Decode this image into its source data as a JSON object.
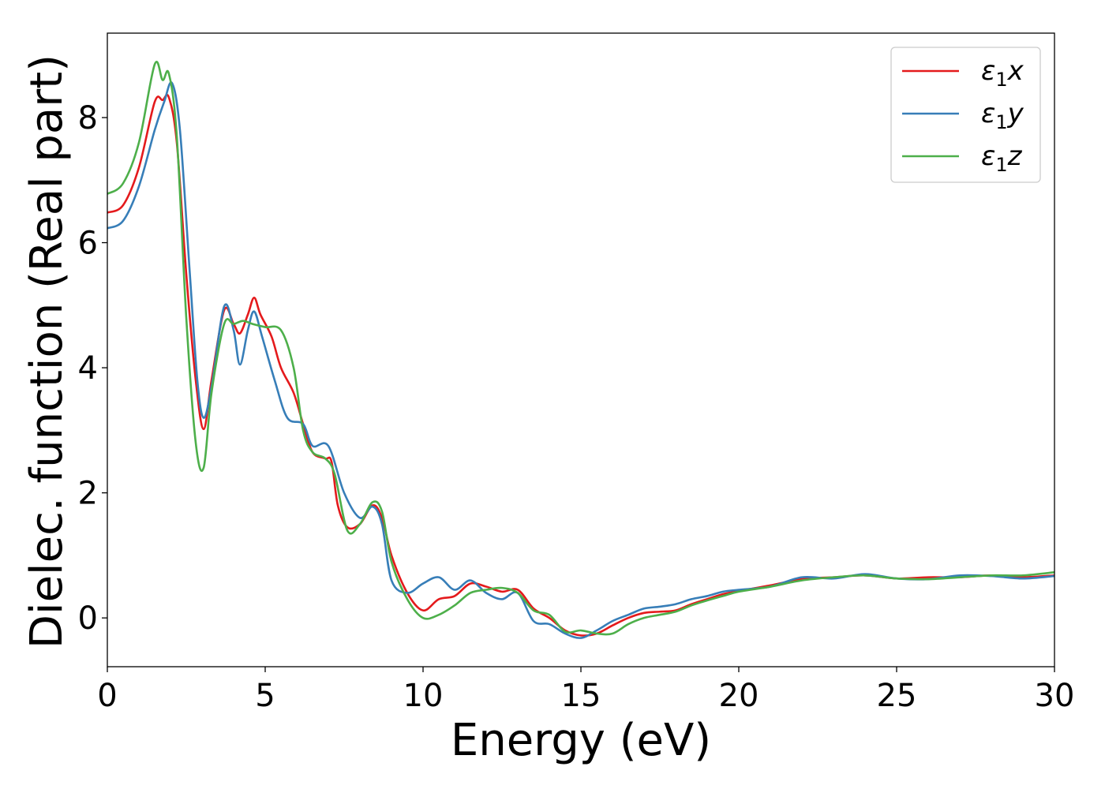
{
  "chart_data": {
    "type": "line",
    "title": "",
    "xlabel": "Energy (eV)",
    "ylabel": "Dielec. function (Real part)",
    "xlim": [
      0,
      30
    ],
    "ylim": [
      -0.78,
      9.35
    ],
    "xticks": [
      0,
      5,
      10,
      15,
      20,
      25,
      30
    ],
    "yticks": [
      0,
      2,
      4,
      6,
      8
    ],
    "grid": false,
    "legend_position": "top-right",
    "series": [
      {
        "name": "ε₁x",
        "name_main": "ε",
        "name_sub": "1",
        "name_suffix": "x",
        "color": "#e41a1c",
        "points": [
          [
            0,
            6.48
          ],
          [
            0.5,
            6.6
          ],
          [
            1,
            7.2
          ],
          [
            1.5,
            8.25
          ],
          [
            1.75,
            8.28
          ],
          [
            1.95,
            8.32
          ],
          [
            2.2,
            7.6
          ],
          [
            2.5,
            5.5
          ],
          [
            2.8,
            3.8
          ],
          [
            3.05,
            3.02
          ],
          [
            3.3,
            3.8
          ],
          [
            3.7,
            4.92
          ],
          [
            4.0,
            4.7
          ],
          [
            4.2,
            4.55
          ],
          [
            4.45,
            4.85
          ],
          [
            4.65,
            5.12
          ],
          [
            4.85,
            4.85
          ],
          [
            5.2,
            4.5
          ],
          [
            5.5,
            4.0
          ],
          [
            5.9,
            3.6
          ],
          [
            6.2,
            3.1
          ],
          [
            6.5,
            2.65
          ],
          [
            6.9,
            2.55
          ],
          [
            7.1,
            2.5
          ],
          [
            7.3,
            1.8
          ],
          [
            7.6,
            1.45
          ],
          [
            8.0,
            1.5
          ],
          [
            8.4,
            1.8
          ],
          [
            8.7,
            1.6
          ],
          [
            9.0,
            1.0
          ],
          [
            9.5,
            0.4
          ],
          [
            10.0,
            0.12
          ],
          [
            10.5,
            0.3
          ],
          [
            11.0,
            0.35
          ],
          [
            11.5,
            0.55
          ],
          [
            12.0,
            0.5
          ],
          [
            12.5,
            0.42
          ],
          [
            13.0,
            0.45
          ],
          [
            13.5,
            0.15
          ],
          [
            14.0,
            0.0
          ],
          [
            14.5,
            -0.2
          ],
          [
            15.0,
            -0.28
          ],
          [
            15.5,
            -0.25
          ],
          [
            16.0,
            -0.12
          ],
          [
            16.5,
            0.0
          ],
          [
            17.0,
            0.08
          ],
          [
            17.5,
            0.1
          ],
          [
            18.0,
            0.12
          ],
          [
            18.5,
            0.22
          ],
          [
            19.0,
            0.3
          ],
          [
            19.5,
            0.38
          ],
          [
            20.0,
            0.43
          ],
          [
            21.0,
            0.52
          ],
          [
            22.0,
            0.62
          ],
          [
            23.0,
            0.65
          ],
          [
            24.0,
            0.68
          ],
          [
            25.0,
            0.63
          ],
          [
            26.0,
            0.65
          ],
          [
            27.0,
            0.65
          ],
          [
            28.0,
            0.68
          ],
          [
            29.0,
            0.65
          ],
          [
            30.0,
            0.68
          ]
        ]
      },
      {
        "name": "ε₁y",
        "name_main": "ε",
        "name_sub": "1",
        "name_suffix": "y",
        "color": "#377eb8",
        "points": [
          [
            0,
            6.23
          ],
          [
            0.5,
            6.35
          ],
          [
            1,
            6.9
          ],
          [
            1.5,
            7.8
          ],
          [
            1.8,
            8.25
          ],
          [
            2.05,
            8.55
          ],
          [
            2.3,
            7.8
          ],
          [
            2.6,
            5.6
          ],
          [
            2.85,
            3.8
          ],
          [
            3.05,
            3.2
          ],
          [
            3.3,
            3.7
          ],
          [
            3.7,
            4.98
          ],
          [
            4.0,
            4.6
          ],
          [
            4.2,
            4.05
          ],
          [
            4.45,
            4.6
          ],
          [
            4.65,
            4.9
          ],
          [
            4.9,
            4.5
          ],
          [
            5.3,
            3.8
          ],
          [
            5.7,
            3.2
          ],
          [
            6.2,
            3.1
          ],
          [
            6.5,
            2.75
          ],
          [
            7.0,
            2.75
          ],
          [
            7.5,
            2.0
          ],
          [
            8.0,
            1.6
          ],
          [
            8.4,
            1.78
          ],
          [
            8.7,
            1.5
          ],
          [
            9.0,
            0.6
          ],
          [
            9.5,
            0.4
          ],
          [
            10.0,
            0.55
          ],
          [
            10.5,
            0.65
          ],
          [
            11.0,
            0.45
          ],
          [
            11.5,
            0.6
          ],
          [
            12.0,
            0.4
          ],
          [
            12.5,
            0.3
          ],
          [
            13.0,
            0.4
          ],
          [
            13.5,
            -0.05
          ],
          [
            14.0,
            -0.1
          ],
          [
            14.5,
            -0.25
          ],
          [
            15.0,
            -0.32
          ],
          [
            15.5,
            -0.2
          ],
          [
            16.0,
            -0.05
          ],
          [
            16.5,
            0.05
          ],
          [
            17.0,
            0.15
          ],
          [
            17.5,
            0.18
          ],
          [
            18.0,
            0.22
          ],
          [
            18.5,
            0.3
          ],
          [
            19.0,
            0.35
          ],
          [
            19.5,
            0.42
          ],
          [
            20.0,
            0.45
          ],
          [
            21.0,
            0.5
          ],
          [
            22.0,
            0.65
          ],
          [
            23.0,
            0.63
          ],
          [
            24.0,
            0.7
          ],
          [
            25.0,
            0.63
          ],
          [
            26.0,
            0.62
          ],
          [
            27.0,
            0.68
          ],
          [
            28.0,
            0.67
          ],
          [
            29.0,
            0.63
          ],
          [
            30.0,
            0.67
          ]
        ]
      },
      {
        "name": "ε₁z",
        "name_main": "ε",
        "name_sub": "1",
        "name_suffix": "z",
        "color": "#4daf4a",
        "points": [
          [
            0,
            6.78
          ],
          [
            0.5,
            6.95
          ],
          [
            1,
            7.6
          ],
          [
            1.5,
            8.85
          ],
          [
            1.75,
            8.6
          ],
          [
            1.95,
            8.7
          ],
          [
            2.2,
            7.7
          ],
          [
            2.5,
            4.8
          ],
          [
            2.8,
            2.8
          ],
          [
            3.05,
            2.4
          ],
          [
            3.3,
            3.6
          ],
          [
            3.7,
            4.7
          ],
          [
            4.0,
            4.7
          ],
          [
            4.3,
            4.75
          ],
          [
            4.6,
            4.7
          ],
          [
            5.0,
            4.65
          ],
          [
            5.5,
            4.6
          ],
          [
            5.9,
            4.0
          ],
          [
            6.2,
            3.0
          ],
          [
            6.5,
            2.65
          ],
          [
            6.9,
            2.55
          ],
          [
            7.2,
            2.3
          ],
          [
            7.6,
            1.4
          ],
          [
            8.0,
            1.5
          ],
          [
            8.4,
            1.85
          ],
          [
            8.7,
            1.7
          ],
          [
            9.0,
            0.9
          ],
          [
            9.5,
            0.3
          ],
          [
            10.0,
            0.0
          ],
          [
            10.5,
            0.05
          ],
          [
            11.0,
            0.2
          ],
          [
            11.5,
            0.4
          ],
          [
            12.0,
            0.45
          ],
          [
            12.5,
            0.48
          ],
          [
            13.0,
            0.4
          ],
          [
            13.5,
            0.12
          ],
          [
            14.0,
            0.05
          ],
          [
            14.5,
            -0.22
          ],
          [
            15.0,
            -0.2
          ],
          [
            15.5,
            -0.25
          ],
          [
            16.0,
            -0.25
          ],
          [
            16.5,
            -0.1
          ],
          [
            17.0,
            0.0
          ],
          [
            17.5,
            0.05
          ],
          [
            18.0,
            0.1
          ],
          [
            18.5,
            0.2
          ],
          [
            19.0,
            0.28
          ],
          [
            19.5,
            0.35
          ],
          [
            20.0,
            0.42
          ],
          [
            21.0,
            0.5
          ],
          [
            22.0,
            0.6
          ],
          [
            23.0,
            0.65
          ],
          [
            24.0,
            0.68
          ],
          [
            25.0,
            0.63
          ],
          [
            26.0,
            0.62
          ],
          [
            27.0,
            0.65
          ],
          [
            28.0,
            0.68
          ],
          [
            29.0,
            0.68
          ],
          [
            30.0,
            0.73
          ]
        ]
      }
    ]
  }
}
